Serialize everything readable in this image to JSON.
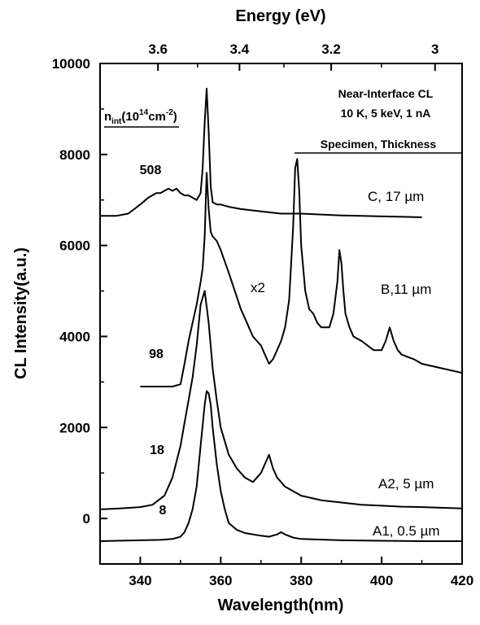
{
  "chart_data": {
    "type": "line",
    "title": "",
    "xlabel": "Wavelength(nm)",
    "ylabel": "CL Intensity(a.u.)",
    "top_axis_label": "Energy (eV)",
    "xlim": [
      330,
      420
    ],
    "ylim": [
      -1000,
      10000
    ],
    "x_ticks": [
      "340",
      "360",
      "380",
      "400",
      "420"
    ],
    "y_ticks": [
      "0",
      "2000",
      "4000",
      "6000",
      "8000",
      "10000"
    ],
    "top_ticks": [
      {
        "energy": 3.6,
        "label": "3.6"
      },
      {
        "energy": 3.4,
        "label": "3.4"
      },
      {
        "energy": 3.2,
        "label": "3.2"
      },
      {
        "energy": 3.0,
        "label": "3"
      }
    ],
    "header_text": [
      "Near-Interface CL",
      "10 K, 5 keV, 1 nA"
    ],
    "legend_left": {
      "main": "n",
      "sub": "int",
      "unit_open": "(10",
      "sup1": "14",
      "unit_mid": "cm",
      "sup2": "-2",
      "unit_close": ")"
    },
    "legend_right": "Specimen, Thickness",
    "series": [
      {
        "name": "C, 17 µm",
        "n_int": "508",
        "x": [
          330,
          334,
          337,
          340,
          342,
          344,
          345,
          346,
          347,
          348,
          349,
          350,
          351,
          352,
          353,
          354,
          355,
          355.5,
          356,
          356.5,
          357,
          357.5,
          358,
          359,
          360,
          362,
          365,
          370,
          375,
          380,
          385,
          390,
          395,
          400,
          405,
          410
        ],
        "y": [
          6650,
          6650,
          6700,
          6900,
          7050,
          7150,
          7150,
          7200,
          7250,
          7200,
          7250,
          7150,
          7100,
          7100,
          7050,
          7000,
          7150,
          7700,
          8700,
          9450,
          8500,
          7300,
          6950,
          6900,
          6900,
          6850,
          6800,
          6750,
          6700,
          6700,
          6680,
          6660,
          6650,
          6640,
          6630,
          6620
        ]
      },
      {
        "name": "B,11 µm",
        "n_int": "98",
        "annotation": "x2",
        "x": [
          340,
          345,
          348,
          350,
          351,
          352,
          353,
          354,
          355,
          355.5,
          356,
          356.5,
          357,
          357.5,
          358,
          359,
          360,
          362,
          365,
          368,
          370,
          371,
          372,
          373,
          374,
          375,
          376,
          377,
          378,
          378.5,
          379,
          379.5,
          380,
          381,
          382,
          383,
          384,
          385,
          387,
          388,
          389,
          389.5,
          390,
          390.5,
          391,
          392,
          393,
          395,
          398,
          400,
          401,
          402,
          403,
          404,
          405,
          408,
          410,
          415,
          420
        ],
        "y": [
          2900,
          2900,
          2900,
          2950,
          3400,
          3900,
          4300,
          4700,
          5200,
          5500,
          6200,
          7600,
          6800,
          6300,
          6200,
          6100,
          5900,
          5400,
          4600,
          4000,
          3800,
          3600,
          3400,
          3500,
          3700,
          3900,
          4200,
          4800,
          6400,
          7700,
          7900,
          7200,
          6000,
          5000,
          4600,
          4500,
          4300,
          4200,
          4200,
          4500,
          5200,
          5900,
          5600,
          5000,
          4500,
          4200,
          4000,
          3900,
          3700,
          3700,
          3900,
          4200,
          3900,
          3700,
          3600,
          3500,
          3400,
          3300,
          3200
        ]
      },
      {
        "name": "A2, 5 µm",
        "n_int": "18",
        "x": [
          330,
          335,
          340,
          343,
          346,
          348,
          350,
          351,
          352,
          353,
          354,
          355,
          356,
          357,
          358,
          359,
          360,
          362,
          364,
          366,
          368,
          369,
          370,
          371,
          372,
          373,
          374,
          376,
          378,
          380,
          385,
          390,
          395,
          400,
          405,
          410,
          420
        ],
        "y": [
          200,
          220,
          250,
          300,
          500,
          900,
          1600,
          2100,
          2600,
          3100,
          3800,
          4700,
          5000,
          4300,
          3300,
          2600,
          2000,
          1400,
          1100,
          900,
          800,
          900,
          1000,
          1200,
          1400,
          1100,
          900,
          700,
          600,
          500,
          400,
          350,
          300,
          280,
          260,
          250,
          220
        ]
      },
      {
        "name": "A1, 0.5 µm",
        "n_int": "8",
        "x": [
          330,
          340,
          345,
          348,
          350,
          351,
          352,
          353,
          354,
          355,
          356,
          356.5,
          357,
          357.5,
          358,
          359,
          360,
          361,
          362,
          364,
          366,
          370,
          372,
          374,
          375,
          376,
          378,
          380,
          390,
          400,
          410,
          420
        ],
        "y": [
          -500,
          -480,
          -470,
          -450,
          -400,
          -300,
          -100,
          200,
          700,
          1600,
          2500,
          2800,
          2750,
          2500,
          2000,
          1200,
          600,
          200,
          -100,
          -250,
          -320,
          -380,
          -400,
          -350,
          -300,
          -350,
          -420,
          -450,
          -480,
          -490,
          -500,
          -500
        ]
      }
    ]
  }
}
